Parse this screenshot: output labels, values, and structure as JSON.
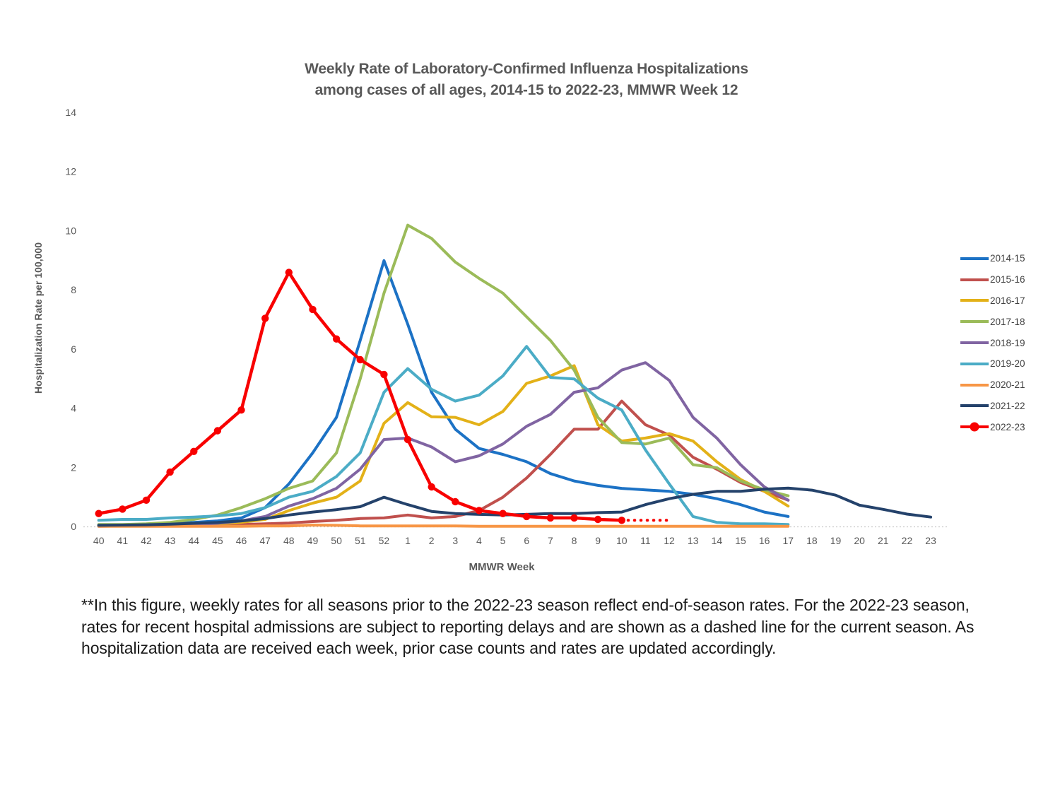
{
  "title": {
    "line1": "Weekly Rate of Laboratory-Confirmed Influenza Hospitalizations",
    "line2": "among cases of all ages, 2014-15 to 2022-23, MMWR Week 12"
  },
  "axes": {
    "y_title": "Hospitalization Rate per 100,000",
    "x_title": "MMWR Week"
  },
  "footnote": {
    "lines": [
      "**In this figure, weekly rates for all seasons prior to the 2022-23 season reflect end-of-season rates. For the 2022-23 season,",
      "rates for recent hospital admissions are subject to reporting delays and are shown as a dashed line for the current season. As",
      "hospitalization data are received each week, prior case counts and rates are updated accordingly."
    ]
  },
  "chart_data": {
    "type": "line",
    "title": "Weekly Rate of Laboratory-Confirmed Influenza Hospitalizations among cases of all ages, 2014-15 to 2022-23, MMWR Week 12",
    "xlabel": "MMWR Week",
    "ylabel": "Hospitalization Rate per 100,000",
    "ylim": [
      0,
      14
    ],
    "y_ticks": [
      0,
      2,
      4,
      6,
      8,
      10,
      12,
      14
    ],
    "grid": false,
    "legend_position": "right",
    "categories": [
      "40",
      "41",
      "42",
      "43",
      "44",
      "45",
      "46",
      "47",
      "48",
      "49",
      "50",
      "51",
      "52",
      "1",
      "2",
      "3",
      "4",
      "5",
      "6",
      "7",
      "8",
      "9",
      "10",
      "11",
      "12",
      "13",
      "14",
      "15",
      "16",
      "17",
      "18",
      "19",
      "20",
      "21",
      "22",
      "23"
    ],
    "series": [
      {
        "name": "2014-15",
        "label": "2014-15",
        "color": "#1C72C5",
        "values": [
          0.05,
          0.05,
          0.08,
          0.1,
          0.15,
          0.2,
          0.3,
          0.65,
          1.45,
          2.5,
          3.7,
          6.3,
          9.0,
          6.85,
          4.55,
          3.3,
          2.65,
          2.45,
          2.2,
          1.8,
          1.55,
          1.4,
          1.3,
          1.25,
          1.2,
          1.1,
          0.95,
          0.75,
          0.5,
          0.35,
          null,
          null,
          null,
          null,
          null,
          null
        ]
      },
      {
        "name": "2015-16",
        "label": "2015-16",
        "color": "#C0504D",
        "values": [
          0.03,
          0.03,
          0.04,
          0.05,
          0.05,
          0.06,
          0.08,
          0.1,
          0.13,
          0.18,
          0.22,
          0.28,
          0.3,
          0.4,
          0.3,
          0.35,
          0.55,
          1.0,
          1.65,
          2.45,
          3.3,
          3.3,
          4.25,
          3.45,
          3.1,
          2.35,
          1.95,
          1.5,
          1.2,
          0.9,
          null,
          null,
          null,
          null,
          null,
          null
        ]
      },
      {
        "name": "2016-17",
        "label": "2016-17",
        "color": "#E3B118",
        "values": [
          0.03,
          0.04,
          0.05,
          0.06,
          0.08,
          0.1,
          0.15,
          0.25,
          0.55,
          0.8,
          1.0,
          1.55,
          3.5,
          4.2,
          3.72,
          3.7,
          3.45,
          3.9,
          4.85,
          5.1,
          5.45,
          3.45,
          2.9,
          3.0,
          3.15,
          2.9,
          2.2,
          1.6,
          1.2,
          0.7,
          null,
          null,
          null,
          null,
          null,
          null
        ]
      },
      {
        "name": "2017-18",
        "label": "2017-18",
        "color": "#9BBB59",
        "values": [
          0.08,
          0.08,
          0.1,
          0.15,
          0.25,
          0.4,
          0.65,
          0.95,
          1.3,
          1.55,
          2.5,
          5.0,
          7.9,
          10.2,
          9.75,
          8.95,
          8.4,
          7.9,
          7.1,
          6.3,
          5.3,
          3.7,
          2.85,
          2.8,
          3.0,
          2.1,
          2.0,
          1.55,
          1.25,
          1.05,
          null,
          null,
          null,
          null,
          null,
          null
        ]
      },
      {
        "name": "2018-19",
        "label": "2018-19",
        "color": "#8064A2",
        "values": [
          0.02,
          0.03,
          0.04,
          0.05,
          0.08,
          0.12,
          0.2,
          0.35,
          0.7,
          0.95,
          1.3,
          1.95,
          2.95,
          3.0,
          2.7,
          2.2,
          2.4,
          2.8,
          3.4,
          3.8,
          4.55,
          4.7,
          5.3,
          5.55,
          4.95,
          3.7,
          3.0,
          2.1,
          1.35,
          0.9,
          null,
          null,
          null,
          null,
          null,
          null
        ]
      },
      {
        "name": "2019-20",
        "label": "2019-20",
        "color": "#4BACC6",
        "values": [
          0.22,
          0.25,
          0.25,
          0.3,
          0.33,
          0.37,
          0.45,
          0.65,
          1.0,
          1.2,
          1.7,
          2.5,
          4.55,
          5.35,
          4.65,
          4.25,
          4.45,
          5.1,
          6.1,
          5.05,
          5.0,
          4.35,
          3.95,
          2.6,
          1.45,
          0.35,
          0.15,
          0.1,
          0.1,
          0.08,
          null,
          null,
          null,
          null,
          null,
          null
        ]
      },
      {
        "name": "2020-21",
        "label": "2020-21",
        "color": "#F79646",
        "values": [
          0.02,
          0.02,
          0.02,
          0.02,
          0.02,
          0.02,
          0.02,
          0.03,
          0.03,
          0.06,
          0.05,
          0.03,
          0.03,
          0.03,
          0.03,
          0.03,
          0.02,
          0.02,
          0.02,
          0.02,
          0.02,
          0.02,
          0.02,
          0.02,
          0.02,
          0.02,
          0.02,
          0.02,
          0.02,
          0.02,
          null,
          null,
          null,
          null,
          null,
          null
        ]
      },
      {
        "name": "2021-22",
        "label": "2021-22",
        "color": "#24426B",
        "values": [
          0.05,
          0.06,
          0.07,
          0.09,
          0.12,
          0.15,
          0.2,
          0.28,
          0.4,
          0.5,
          0.58,
          0.68,
          1.0,
          0.75,
          0.52,
          0.45,
          0.42,
          0.4,
          0.42,
          0.45,
          0.45,
          0.48,
          0.5,
          0.75,
          0.95,
          1.1,
          1.2,
          1.2,
          1.27,
          1.31,
          1.24,
          1.07,
          0.73,
          0.59,
          0.43,
          0.33
        ]
      },
      {
        "name": "2022-23",
        "label": "2022-23",
        "color": "#F80000",
        "markers": true,
        "width": 4.5,
        "values": [
          0.45,
          0.6,
          0.9,
          1.85,
          2.55,
          3.25,
          3.95,
          7.05,
          8.6,
          7.35,
          6.35,
          5.65,
          5.15,
          2.95,
          1.35,
          0.85,
          0.55,
          0.45,
          0.35,
          0.3,
          0.3,
          0.25,
          0.22,
          null,
          null,
          null,
          null,
          null,
          null,
          null,
          null,
          null,
          null,
          null,
          null,
          null
        ]
      }
    ],
    "dashed_tail": {
      "series": "2022-23",
      "from_index": 22,
      "to_index": 24,
      "value": 0.22,
      "note": "dashed line for current season (reporting delays)"
    }
  }
}
